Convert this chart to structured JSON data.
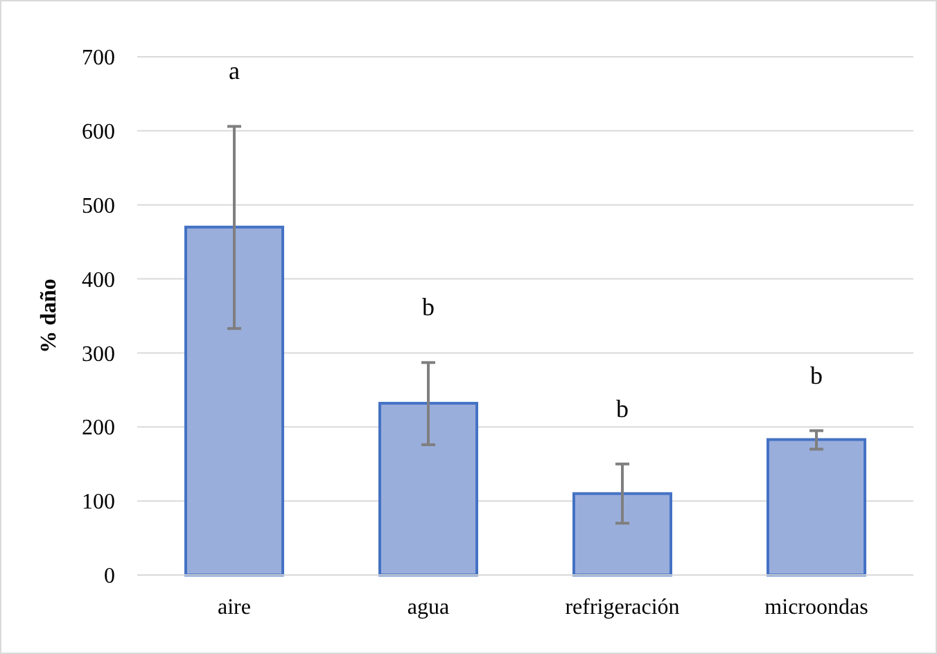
{
  "chart_data": {
    "type": "bar",
    "ylabel": "% daño",
    "categories": [
      "aire",
      "agua",
      "refrigeración",
      "microondas"
    ],
    "values": [
      470,
      232,
      110,
      183
    ],
    "errors": [
      [
        333,
        606
      ],
      [
        176,
        287
      ],
      [
        70,
        150
      ],
      [
        170,
        195
      ]
    ],
    "color": "#9aaedc",
    "ylim": [
      0,
      700
    ],
    "yticks": [
      0,
      100,
      200,
      300,
      400,
      500,
      600,
      700
    ],
    "grid": "y",
    "annotations": [
      "a",
      "b",
      "b",
      "b"
    ]
  }
}
